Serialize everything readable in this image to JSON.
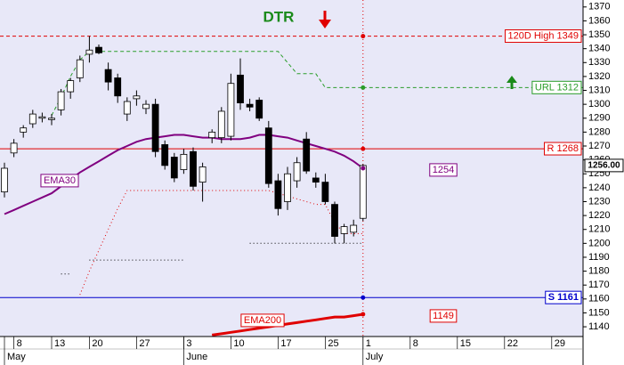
{
  "chart_data": {
    "type": "candlestick",
    "title": "DTR",
    "categories": [
      null,
      "8",
      null,
      null,
      null,
      "13",
      null,
      null,
      null,
      "20",
      null,
      null,
      null,
      null,
      "27",
      null,
      null,
      null,
      null,
      "3",
      null,
      null,
      null,
      null,
      "10",
      null,
      null,
      null,
      null,
      "17",
      null,
      null,
      null,
      null,
      "25",
      null,
      null,
      null,
      "1",
      null,
      null,
      null,
      null,
      "8",
      null,
      null,
      null,
      null,
      "15",
      null,
      null,
      null,
      null,
      "22",
      null,
      null,
      null,
      null,
      "29",
      null,
      null,
      null
    ],
    "months": [
      "May",
      null,
      null,
      null,
      null,
      null,
      null,
      null,
      null,
      null,
      null,
      null,
      null,
      null,
      null,
      null,
      null,
      null,
      null,
      "June",
      null,
      null,
      null,
      null,
      null,
      null,
      null,
      null,
      null,
      null,
      null,
      null,
      null,
      null,
      null,
      null,
      null,
      null,
      "July",
      null,
      null,
      null,
      null,
      null,
      null,
      null,
      null,
      null,
      null,
      null,
      null,
      null,
      null,
      null,
      null,
      null,
      null,
      null,
      null,
      null,
      null,
      null
    ],
    "candles": {
      "open": [
        1237,
        1265,
        1280,
        1286,
        1290,
        1289,
        1296,
        1309,
        1319,
        1336,
        1341,
        1325,
        1319,
        1293,
        1304,
        1297,
        1300,
        1271,
        1262,
        1253,
        1266,
        1244,
        1276,
        1276,
        1277,
        1321,
        1300,
        1303,
        1283,
        1245,
        1230,
        1245,
        1275,
        1247,
        1244,
        1228,
        1207,
        1208,
        1218,
        null,
        null,
        null,
        null,
        null,
        null,
        null,
        null,
        null,
        null,
        null,
        null,
        null,
        null,
        null,
        null,
        null,
        null,
        null,
        null,
        null,
        null,
        null
      ],
      "high": [
        1258,
        1275,
        1285,
        1296,
        1294,
        1293,
        1311,
        1319,
        1335,
        1349,
        1343,
        1330,
        1322,
        1305,
        1310,
        1303,
        1304,
        1274,
        1265,
        1268,
        1269,
        1258,
        1282,
        1298,
        1322,
        1333,
        1304,
        1305,
        1288,
        1250,
        1255,
        1262,
        1280,
        1251,
        1250,
        1230,
        1214,
        1217,
        1257,
        null,
        null,
        null,
        null,
        null,
        null,
        null,
        null,
        null,
        null,
        null,
        null,
        null,
        null,
        null,
        null,
        null,
        null,
        null,
        null,
        null,
        null,
        null
      ],
      "low": [
        1233,
        1262,
        1276,
        1283,
        1287,
        1285,
        1292,
        1304,
        1316,
        1330,
        1336,
        1310,
        1301,
        1288,
        1299,
        1293,
        1262,
        1253,
        1244,
        1250,
        1238,
        1230,
        1272,
        1272,
        1274,
        1296,
        1295,
        1288,
        1240,
        1220,
        1224,
        1240,
        1250,
        1240,
        1228,
        1200,
        1200,
        1205,
        1216,
        null,
        null,
        null,
        null,
        null,
        null,
        null,
        null,
        null,
        null,
        null,
        null,
        null,
        null,
        null,
        null,
        null,
        null,
        null,
        null,
        null,
        null,
        null
      ],
      "close": [
        1254,
        1272,
        1283,
        1293,
        1291,
        1290,
        1309,
        1317,
        1332,
        1339,
        1337,
        1316,
        1306,
        1302,
        1306,
        1300,
        1266,
        1256,
        1247,
        1264,
        1241,
        1255,
        1280,
        1295,
        1315,
        1301,
        1298,
        1290,
        1243,
        1225,
        1250,
        1258,
        1252,
        1244,
        1230,
        1205,
        1212,
        1213,
        1256,
        null,
        null,
        null,
        null,
        null,
        null,
        null,
        null,
        null,
        null,
        null,
        null,
        null,
        null,
        null,
        null,
        null,
        null,
        null,
        null,
        null,
        null,
        null
      ],
      "up_color": "#ffffff",
      "down_color": "#000000"
    },
    "series": [
      {
        "name": "EMA30",
        "color": "#800080",
        "style": "solid",
        "width": 2,
        "last_value_label": true,
        "values": [
          1221,
          1224,
          1227,
          1230,
          1233,
          1236,
          1241,
          1246,
          1251,
          1255,
          1259,
          1263,
          1267,
          1270,
          1273,
          1275,
          1276,
          1277,
          1278,
          1278,
          1277,
          1276,
          1276,
          1275,
          1275,
          1275,
          1276,
          1278,
          1278,
          1277,
          1276,
          1274,
          1272,
          1270,
          1268,
          1266,
          1263,
          1259,
          1254,
          null,
          null,
          null,
          null,
          null,
          null,
          null,
          null,
          null,
          null,
          null,
          null,
          null,
          null,
          null,
          null,
          null,
          null,
          null,
          null,
          null,
          null,
          null
        ]
      },
      {
        "name": "EMA200",
        "color": "#e00000",
        "style": "solid",
        "width": 3,
        "last_value_label": true,
        "values": [
          null,
          null,
          null,
          null,
          null,
          null,
          null,
          null,
          null,
          null,
          null,
          null,
          null,
          null,
          null,
          null,
          null,
          null,
          null,
          null,
          null,
          null,
          1134,
          1135,
          1136,
          1137,
          1138,
          1139,
          1140,
          1141,
          1142,
          1143,
          1144,
          1145,
          1146,
          1147,
          1147,
          1148,
          1149,
          null,
          null,
          null,
          null,
          null,
          null,
          null,
          null,
          null,
          null,
          null,
          null,
          null,
          null,
          null,
          null,
          null,
          null,
          null,
          null,
          null,
          null,
          null
        ]
      },
      {
        "color": "#2a9d2a",
        "style": "dashed",
        "width": 1,
        "last_value_label": false,
        "values": [
          null,
          null,
          null,
          null,
          null,
          1292,
          1305,
          1320,
          1332,
          1338,
          1338,
          1338,
          1338,
          1338,
          1338,
          1338,
          1338,
          1338,
          1338,
          1338,
          1338,
          1338,
          1338,
          1338,
          1338,
          1338,
          1338,
          1338,
          1338,
          1338,
          1330,
          1322,
          1322,
          1322,
          1312,
          1312,
          1312,
          1312,
          1312,
          null,
          null,
          null,
          null,
          null,
          null,
          null,
          null,
          null,
          null,
          null,
          null,
          null,
          null,
          null,
          null,
          null,
          null,
          null,
          null,
          null,
          null,
          null
        ]
      },
      {
        "color": "#e00000",
        "style": "dotted",
        "width": 1,
        "last_value_label": false,
        "values": [
          null,
          null,
          null,
          null,
          null,
          null,
          null,
          null,
          1163,
          1180,
          1195,
          1210,
          1225,
          1238,
          1238,
          1238,
          1238,
          1238,
          1238,
          1238,
          1238,
          1238,
          1238,
          1238,
          1238,
          1238,
          1238,
          1238,
          1238,
          1236,
          1234,
          1232,
          1230,
          1228,
          1228,
          1215,
          1207,
          1207,
          1207,
          null,
          null,
          null,
          null,
          null,
          null,
          null,
          null,
          null,
          null,
          null,
          null,
          null,
          null,
          null,
          null,
          null,
          null,
          null,
          null,
          null,
          null,
          null
        ]
      },
      {
        "color": "#000000",
        "style": "dotted",
        "width": 1,
        "last_value_label": false,
        "values": [
          null,
          null,
          null,
          null,
          null,
          null,
          1178,
          1178,
          null,
          null,
          null,
          null,
          null,
          null,
          null,
          null,
          null,
          null,
          null,
          null,
          null,
          null,
          null,
          null,
          null,
          null,
          null,
          null,
          null,
          null,
          null,
          null,
          null,
          null,
          null,
          null,
          null,
          null,
          null,
          null,
          null,
          null,
          null,
          null,
          null,
          null,
          null,
          null,
          null,
          null,
          null,
          null,
          null,
          null,
          null,
          null,
          null,
          null,
          null,
          null,
          null,
          null
        ]
      },
      {
        "color": "#000000",
        "style": "dotted",
        "width": 1,
        "last_value_label": false,
        "values": [
          null,
          null,
          null,
          null,
          null,
          null,
          null,
          null,
          null,
          1188,
          1188,
          1188,
          1188,
          1188,
          1188,
          1188,
          1188,
          1188,
          1188,
          1188,
          null,
          null,
          null,
          null,
          null,
          null,
          null,
          null,
          null,
          null,
          null,
          null,
          null,
          null,
          null,
          null,
          null,
          null,
          null,
          null,
          null,
          null,
          null,
          null,
          null,
          null,
          null,
          null,
          null,
          null,
          null,
          null,
          null,
          null,
          null,
          null,
          null,
          null,
          null,
          null,
          null,
          null
        ]
      },
      {
        "color": "#000000",
        "style": "dotted",
        "width": 1,
        "last_value_label": false,
        "values": [
          null,
          null,
          null,
          null,
          null,
          null,
          null,
          null,
          null,
          null,
          null,
          null,
          null,
          null,
          null,
          null,
          null,
          null,
          null,
          null,
          null,
          null,
          null,
          null,
          null,
          null,
          1200,
          1200,
          1200,
          1200,
          1200,
          1200,
          1200,
          1200,
          1200,
          1200,
          1200,
          1200,
          1200,
          null,
          null,
          null,
          null,
          null,
          null,
          null,
          null,
          null,
          null,
          null,
          null,
          null,
          null,
          null,
          null,
          null,
          null,
          null,
          null,
          null,
          null,
          null
        ]
      }
    ],
    "levels": [
      {
        "label": "120D High 1349",
        "value": 1349,
        "color": "#e00000",
        "style": "dashed",
        "full_width": true
      },
      {
        "label": "URL 1312",
        "value": 1312,
        "color": "#2a9d2a",
        "style": "dashed",
        "full_width": false
      },
      {
        "label": "R 1268",
        "value": 1268,
        "color": "#e00000",
        "style": "solid",
        "full_width": true
      },
      {
        "label": "S 1161",
        "value": 1161,
        "color": "#0000cc",
        "style": "solid",
        "full_width": true
      }
    ],
    "last_price": {
      "value": 1256,
      "label": "1256.00"
    },
    "ylim": [
      1133,
      1375
    ],
    "yticks": [
      1140,
      1150,
      1160,
      1170,
      1180,
      1190,
      1200,
      1210,
      1220,
      1230,
      1240,
      1250,
      1260,
      1270,
      1280,
      1290,
      1300,
      1310,
      1320,
      1330,
      1340,
      1350,
      1360,
      1370
    ],
    "background": "#e8e8f8"
  }
}
